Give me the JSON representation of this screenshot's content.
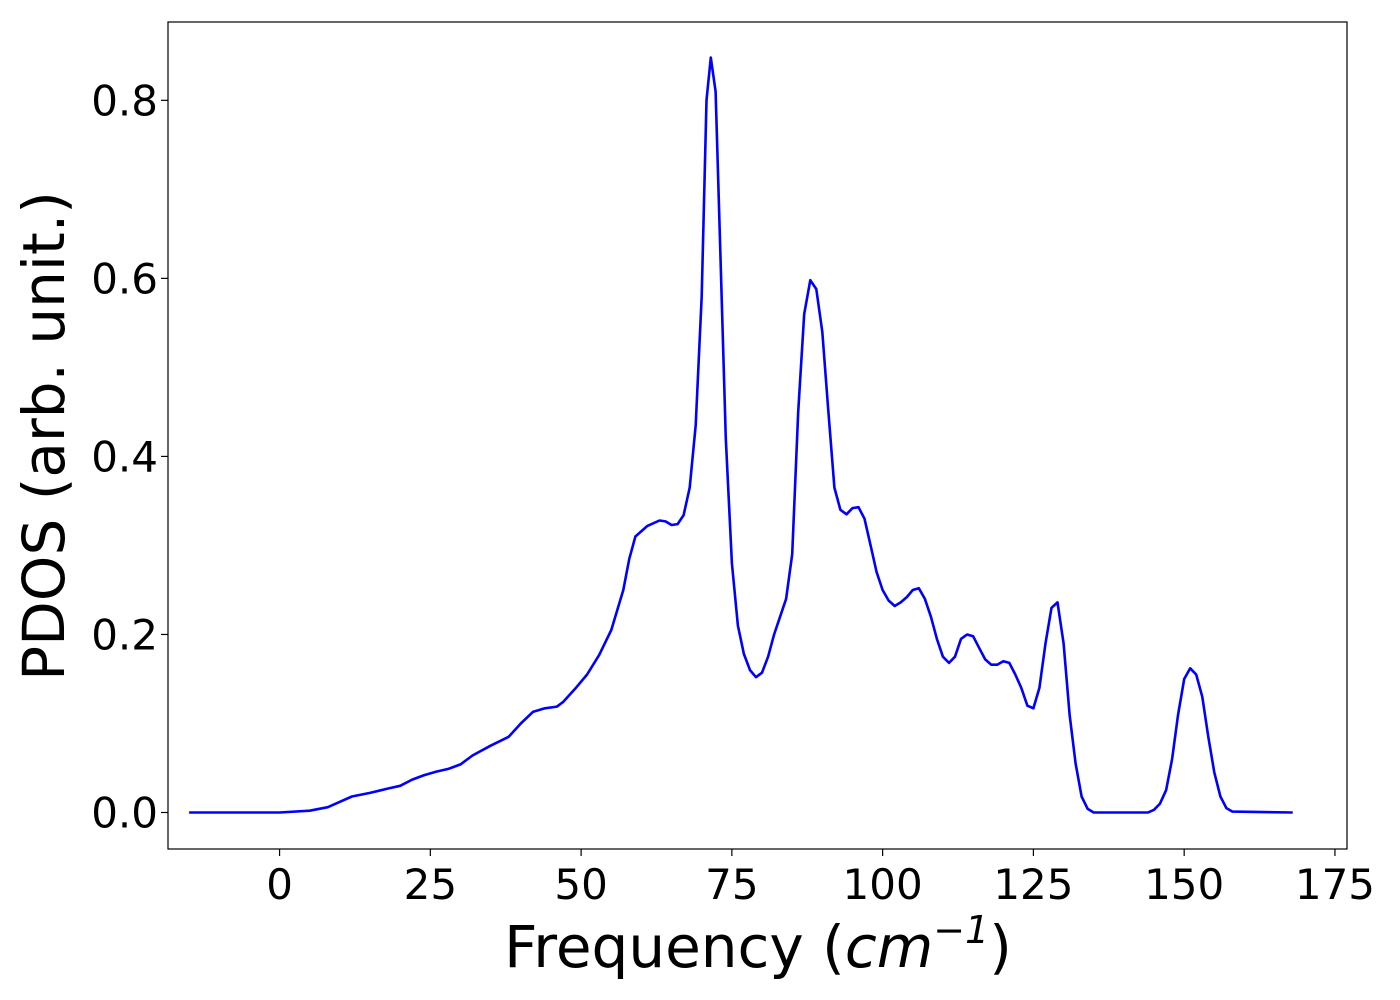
{
  "chart_data": {
    "type": "line",
    "title": "",
    "xlabel": "Frequency (",
    "xlabel_math": "cm",
    "xlabel_sup": "−1",
    "xlabel_end": ")",
    "ylabel": "PDOS (arb. unit.)",
    "xlim": [
      -18.5,
      177
    ],
    "ylim": [
      -0.041,
      0.888
    ],
    "xticks": [
      0,
      25,
      50,
      75,
      100,
      125,
      150,
      175
    ],
    "yticks": [
      0.0,
      0.2,
      0.4,
      0.6,
      0.8
    ],
    "xtick_labels": [
      "0",
      "25",
      "50",
      "75",
      "100",
      "125",
      "150",
      "175"
    ],
    "ytick_labels": [
      "0.0",
      "0.2",
      "0.4",
      "0.6",
      "0.8"
    ],
    "grid": false,
    "legend": "none",
    "line_color": "#0000ff",
    "series": [
      {
        "x": [
          -15,
          0,
          5,
          8,
          10,
          12,
          15,
          18,
          20,
          22,
          24,
          26,
          28,
          30,
          32,
          35,
          38,
          40,
          42,
          44,
          46,
          47,
          49,
          51,
          53,
          55,
          57,
          58,
          59,
          61,
          63,
          64,
          65,
          66,
          67,
          68,
          69,
          70,
          70.8,
          71.5,
          72.3,
          73,
          74,
          75,
          76,
          77,
          78,
          79,
          80,
          81,
          82,
          83,
          84,
          85,
          86,
          87,
          88,
          89,
          90,
          91,
          92,
          93,
          94,
          95,
          96,
          97,
          98,
          99,
          100,
          101,
          102,
          103,
          104,
          105,
          106,
          107,
          108,
          109,
          110,
          111,
          112,
          113,
          114,
          115,
          116,
          117,
          118,
          119,
          120,
          121,
          122,
          123,
          124,
          125,
          126,
          127,
          128,
          129,
          130,
          131,
          132,
          133,
          134,
          135,
          140,
          144,
          145,
          146,
          147,
          148,
          149,
          150,
          151,
          152,
          153,
          154,
          155,
          156,
          157,
          158,
          168
        ],
        "y": [
          0.0,
          0.0,
          0.002,
          0.006,
          0.012,
          0.018,
          0.022,
          0.027,
          0.03,
          0.037,
          0.042,
          0.046,
          0.049,
          0.054,
          0.064,
          0.075,
          0.085,
          0.1,
          0.113,
          0.117,
          0.119,
          0.124,
          0.139,
          0.155,
          0.177,
          0.205,
          0.25,
          0.285,
          0.31,
          0.322,
          0.328,
          0.327,
          0.323,
          0.324,
          0.334,
          0.365,
          0.435,
          0.58,
          0.8,
          0.848,
          0.81,
          0.65,
          0.42,
          0.28,
          0.21,
          0.178,
          0.16,
          0.152,
          0.157,
          0.175,
          0.2,
          0.22,
          0.24,
          0.29,
          0.45,
          0.56,
          0.598,
          0.588,
          0.54,
          0.45,
          0.365,
          0.34,
          0.335,
          0.342,
          0.343,
          0.33,
          0.3,
          0.27,
          0.25,
          0.238,
          0.232,
          0.236,
          0.242,
          0.25,
          0.252,
          0.24,
          0.22,
          0.195,
          0.175,
          0.168,
          0.175,
          0.195,
          0.2,
          0.198,
          0.185,
          0.172,
          0.166,
          0.166,
          0.17,
          0.168,
          0.155,
          0.14,
          0.12,
          0.117,
          0.14,
          0.19,
          0.23,
          0.236,
          0.19,
          0.11,
          0.055,
          0.018,
          0.004,
          0.0,
          0.0,
          0.0,
          0.003,
          0.01,
          0.025,
          0.06,
          0.11,
          0.15,
          0.162,
          0.155,
          0.13,
          0.085,
          0.045,
          0.018,
          0.005,
          0.001,
          0.0
        ]
      }
    ]
  }
}
